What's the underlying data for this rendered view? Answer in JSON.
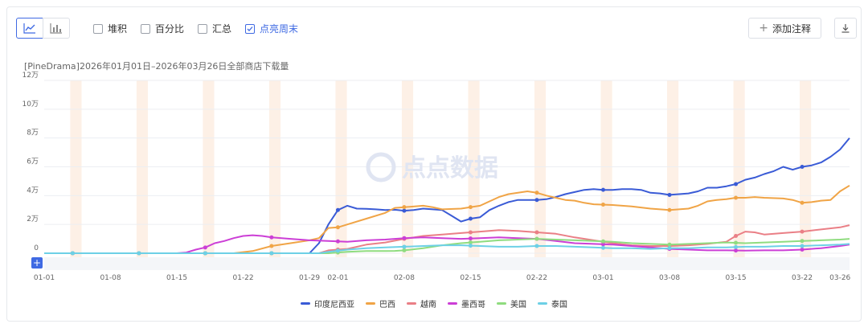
{
  "toolbar": {
    "view_line_icon": "line-chart-icon",
    "view_bar_icon": "bar-chart-icon",
    "options": [
      {
        "label": "堆积",
        "checked": false
      },
      {
        "label": "百分比",
        "checked": false
      },
      {
        "label": "汇总",
        "checked": false
      },
      {
        "label": "点亮周末",
        "checked": true
      }
    ],
    "add_note_label": "添加注释",
    "download_icon": "download-icon"
  },
  "watermark": "点点数据",
  "colors": {
    "印度尼西亚": "#3a5bd6",
    "巴西": "#f0a446",
    "越南": "#ea7f86",
    "墨西哥": "#cc3fd6",
    "美国": "#8fdc7f",
    "泰国": "#6dd0e6",
    "weekend": "#fdf0e6",
    "accent": "#3f6ae3"
  },
  "chart_data": {
    "type": "line",
    "title": "[PineDrama]2026年01月01日–2026年03月26日全部商店下载量",
    "x_start": "01-01",
    "days": 85,
    "xticks": [
      "01-01",
      "01-08",
      "01-15",
      "01-22",
      "01-29",
      "02-01",
      "02-08",
      "02-15",
      "02-22",
      "03-01",
      "03-08",
      "03-15",
      "03-22",
      "03-26"
    ],
    "ytick_labels": [
      "0",
      "2万",
      "4万",
      "6万",
      "8万",
      "10万",
      "12万"
    ],
    "ylim": [
      0,
      120000
    ],
    "highlight_weekends": true,
    "weekend_markers": [
      3,
      10,
      17,
      24,
      31,
      38,
      45,
      52,
      59,
      66,
      73,
      80
    ],
    "legend_position": "bottom-center",
    "series": [
      {
        "name": "印度尼西亚",
        "color": "#3a5bd6",
        "points": [
          [
            0,
            0
          ],
          [
            28,
            0
          ],
          [
            29,
            7000
          ],
          [
            30,
            20000
          ],
          [
            31,
            30000
          ],
          [
            32,
            33000
          ],
          [
            33,
            31000
          ],
          [
            34,
            30800
          ],
          [
            35,
            30500
          ],
          [
            36,
            30000
          ],
          [
            37,
            30200
          ],
          [
            38,
            29500
          ],
          [
            39,
            30000
          ],
          [
            40,
            31000
          ],
          [
            41,
            30500
          ],
          [
            42,
            30000
          ],
          [
            43,
            26000
          ],
          [
            44,
            22000
          ],
          [
            45,
            24000
          ],
          [
            46,
            25000
          ],
          [
            47,
            30000
          ],
          [
            48,
            33000
          ],
          [
            49,
            35500
          ],
          [
            50,
            37000
          ],
          [
            51,
            37000
          ],
          [
            52,
            37000
          ],
          [
            53,
            37500
          ],
          [
            54,
            39000
          ],
          [
            55,
            41000
          ],
          [
            56,
            42500
          ],
          [
            57,
            44000
          ],
          [
            58,
            44500
          ],
          [
            59,
            44000
          ],
          [
            60,
            44000
          ],
          [
            61,
            44500
          ],
          [
            62,
            44500
          ],
          [
            63,
            44000
          ],
          [
            64,
            42000
          ],
          [
            65,
            41500
          ],
          [
            66,
            40500
          ],
          [
            67,
            41000
          ],
          [
            68,
            41500
          ],
          [
            69,
            43000
          ],
          [
            70,
            45500
          ],
          [
            71,
            45500
          ],
          [
            72,
            46500
          ],
          [
            73,
            48000
          ],
          [
            74,
            51000
          ],
          [
            75,
            52500
          ],
          [
            76,
            55000
          ],
          [
            77,
            57000
          ],
          [
            78,
            60000
          ],
          [
            79,
            58000
          ],
          [
            80,
            60000
          ],
          [
            81,
            61000
          ],
          [
            82,
            63000
          ],
          [
            83,
            67000
          ],
          [
            84,
            72000
          ],
          [
            85,
            80000
          ]
        ]
      },
      {
        "name": "巴西",
        "color": "#f0a446",
        "points": [
          [
            0,
            0
          ],
          [
            20,
            0
          ],
          [
            22,
            1500
          ],
          [
            24,
            5000
          ],
          [
            26,
            7000
          ],
          [
            28,
            9000
          ],
          [
            29,
            10500
          ],
          [
            30,
            17500
          ],
          [
            31,
            18000
          ],
          [
            32,
            20000
          ],
          [
            34,
            24000
          ],
          [
            36,
            28000
          ],
          [
            37,
            31500
          ],
          [
            38,
            32000
          ],
          [
            40,
            33000
          ],
          [
            41,
            32000
          ],
          [
            42,
            30500
          ],
          [
            44,
            31000
          ],
          [
            46,
            33000
          ],
          [
            47,
            36000
          ],
          [
            48,
            39000
          ],
          [
            49,
            41000
          ],
          [
            50,
            42000
          ],
          [
            51,
            43000
          ],
          [
            52,
            42000
          ],
          [
            53,
            40000
          ],
          [
            54,
            38500
          ],
          [
            55,
            37000
          ],
          [
            56,
            36500
          ],
          [
            57,
            35000
          ],
          [
            58,
            34000
          ],
          [
            60,
            33500
          ],
          [
            62,
            32500
          ],
          [
            64,
            31000
          ],
          [
            66,
            30000
          ],
          [
            67,
            30500
          ],
          [
            68,
            31000
          ],
          [
            69,
            33000
          ],
          [
            70,
            36000
          ],
          [
            71,
            37000
          ],
          [
            72,
            37500
          ],
          [
            73,
            38500
          ],
          [
            74,
            38500
          ],
          [
            75,
            39000
          ],
          [
            76,
            38500
          ],
          [
            78,
            38000
          ],
          [
            79,
            37000
          ],
          [
            80,
            35000
          ],
          [
            81,
            35500
          ],
          [
            82,
            36500
          ],
          [
            83,
            37000
          ],
          [
            84,
            43000
          ],
          [
            85,
            47000
          ]
        ]
      },
      {
        "name": "越南",
        "color": "#ea7f86",
        "points": [
          [
            0,
            0
          ],
          [
            29,
            0
          ],
          [
            30,
            2000
          ],
          [
            32,
            3000
          ],
          [
            34,
            6000
          ],
          [
            36,
            7500
          ],
          [
            38,
            10000
          ],
          [
            40,
            12000
          ],
          [
            42,
            13000
          ],
          [
            44,
            14000
          ],
          [
            46,
            15000
          ],
          [
            48,
            16000
          ],
          [
            50,
            15500
          ],
          [
            52,
            14500
          ],
          [
            54,
            13500
          ],
          [
            56,
            11000
          ],
          [
            58,
            9000
          ],
          [
            60,
            7000
          ],
          [
            62,
            5500
          ],
          [
            64,
            5000
          ],
          [
            66,
            5000
          ],
          [
            68,
            5500
          ],
          [
            70,
            6500
          ],
          [
            72,
            8000
          ],
          [
            73,
            12000
          ],
          [
            74,
            15000
          ],
          [
            75,
            14500
          ],
          [
            76,
            13000
          ],
          [
            78,
            14000
          ],
          [
            80,
            15000
          ],
          [
            82,
            16500
          ],
          [
            84,
            18000
          ],
          [
            85,
            19500
          ]
        ]
      },
      {
        "name": "墨西哥",
        "color": "#cc3fd6",
        "points": [
          [
            0,
            0
          ],
          [
            14,
            0
          ],
          [
            15,
            500
          ],
          [
            16,
            2500
          ],
          [
            17,
            4000
          ],
          [
            18,
            7000
          ],
          [
            19,
            8500
          ],
          [
            20,
            10500
          ],
          [
            21,
            12000
          ],
          [
            22,
            12500
          ],
          [
            23,
            12000
          ],
          [
            24,
            11000
          ],
          [
            26,
            10000
          ],
          [
            28,
            9000
          ],
          [
            30,
            8500
          ],
          [
            32,
            8000
          ],
          [
            34,
            9000
          ],
          [
            36,
            9500
          ],
          [
            38,
            10500
          ],
          [
            40,
            11000
          ],
          [
            42,
            10500
          ],
          [
            44,
            10000
          ],
          [
            46,
            10500
          ],
          [
            48,
            11000
          ],
          [
            50,
            10500
          ],
          [
            52,
            10000
          ],
          [
            54,
            8500
          ],
          [
            56,
            7000
          ],
          [
            58,
            6500
          ],
          [
            60,
            6000
          ],
          [
            62,
            5000
          ],
          [
            64,
            4000
          ],
          [
            66,
            3000
          ],
          [
            68,
            2500
          ],
          [
            70,
            2000
          ],
          [
            72,
            2000
          ],
          [
            74,
            1800
          ],
          [
            76,
            2000
          ],
          [
            78,
            2000
          ],
          [
            80,
            2500
          ],
          [
            82,
            3500
          ],
          [
            84,
            5000
          ],
          [
            85,
            6000
          ]
        ]
      },
      {
        "name": "美国",
        "color": "#8fdc7f",
        "points": [
          [
            0,
            0
          ],
          [
            30,
            0
          ],
          [
            31,
            500
          ],
          [
            32,
            1000
          ],
          [
            34,
            1500
          ],
          [
            36,
            1500
          ],
          [
            37,
            1600
          ],
          [
            38,
            2000
          ],
          [
            40,
            3500
          ],
          [
            42,
            5500
          ],
          [
            44,
            7000
          ],
          [
            46,
            8000
          ],
          [
            48,
            9000
          ],
          [
            50,
            9500
          ],
          [
            52,
            10000
          ],
          [
            54,
            9500
          ],
          [
            56,
            9000
          ],
          [
            58,
            8500
          ],
          [
            60,
            8000
          ],
          [
            62,
            7000
          ],
          [
            64,
            6500
          ],
          [
            66,
            6000
          ],
          [
            68,
            6500
          ],
          [
            70,
            7000
          ],
          [
            72,
            7500
          ],
          [
            74,
            7000
          ],
          [
            76,
            7500
          ],
          [
            78,
            8000
          ],
          [
            80,
            8500
          ],
          [
            82,
            9000
          ],
          [
            84,
            9500
          ],
          [
            85,
            10000
          ]
        ]
      },
      {
        "name": "泰国",
        "color": "#6dd0e6",
        "points": [
          [
            0,
            0
          ],
          [
            29,
            0
          ],
          [
            30,
            1000
          ],
          [
            32,
            2500
          ],
          [
            34,
            3500
          ],
          [
            36,
            4000
          ],
          [
            38,
            4500
          ],
          [
            40,
            5000
          ],
          [
            42,
            5500
          ],
          [
            44,
            5500
          ],
          [
            46,
            5000
          ],
          [
            48,
            4500
          ],
          [
            50,
            4500
          ],
          [
            52,
            5000
          ],
          [
            54,
            5000
          ],
          [
            56,
            4500
          ],
          [
            58,
            4000
          ],
          [
            60,
            3500
          ],
          [
            62,
            3500
          ],
          [
            64,
            3000
          ],
          [
            66,
            3500
          ],
          [
            68,
            3500
          ],
          [
            70,
            4000
          ],
          [
            72,
            4000
          ],
          [
            74,
            4500
          ],
          [
            76,
            4500
          ],
          [
            78,
            5000
          ],
          [
            80,
            5000
          ],
          [
            82,
            5500
          ],
          [
            84,
            6000
          ],
          [
            85,
            6500
          ]
        ]
      }
    ]
  }
}
